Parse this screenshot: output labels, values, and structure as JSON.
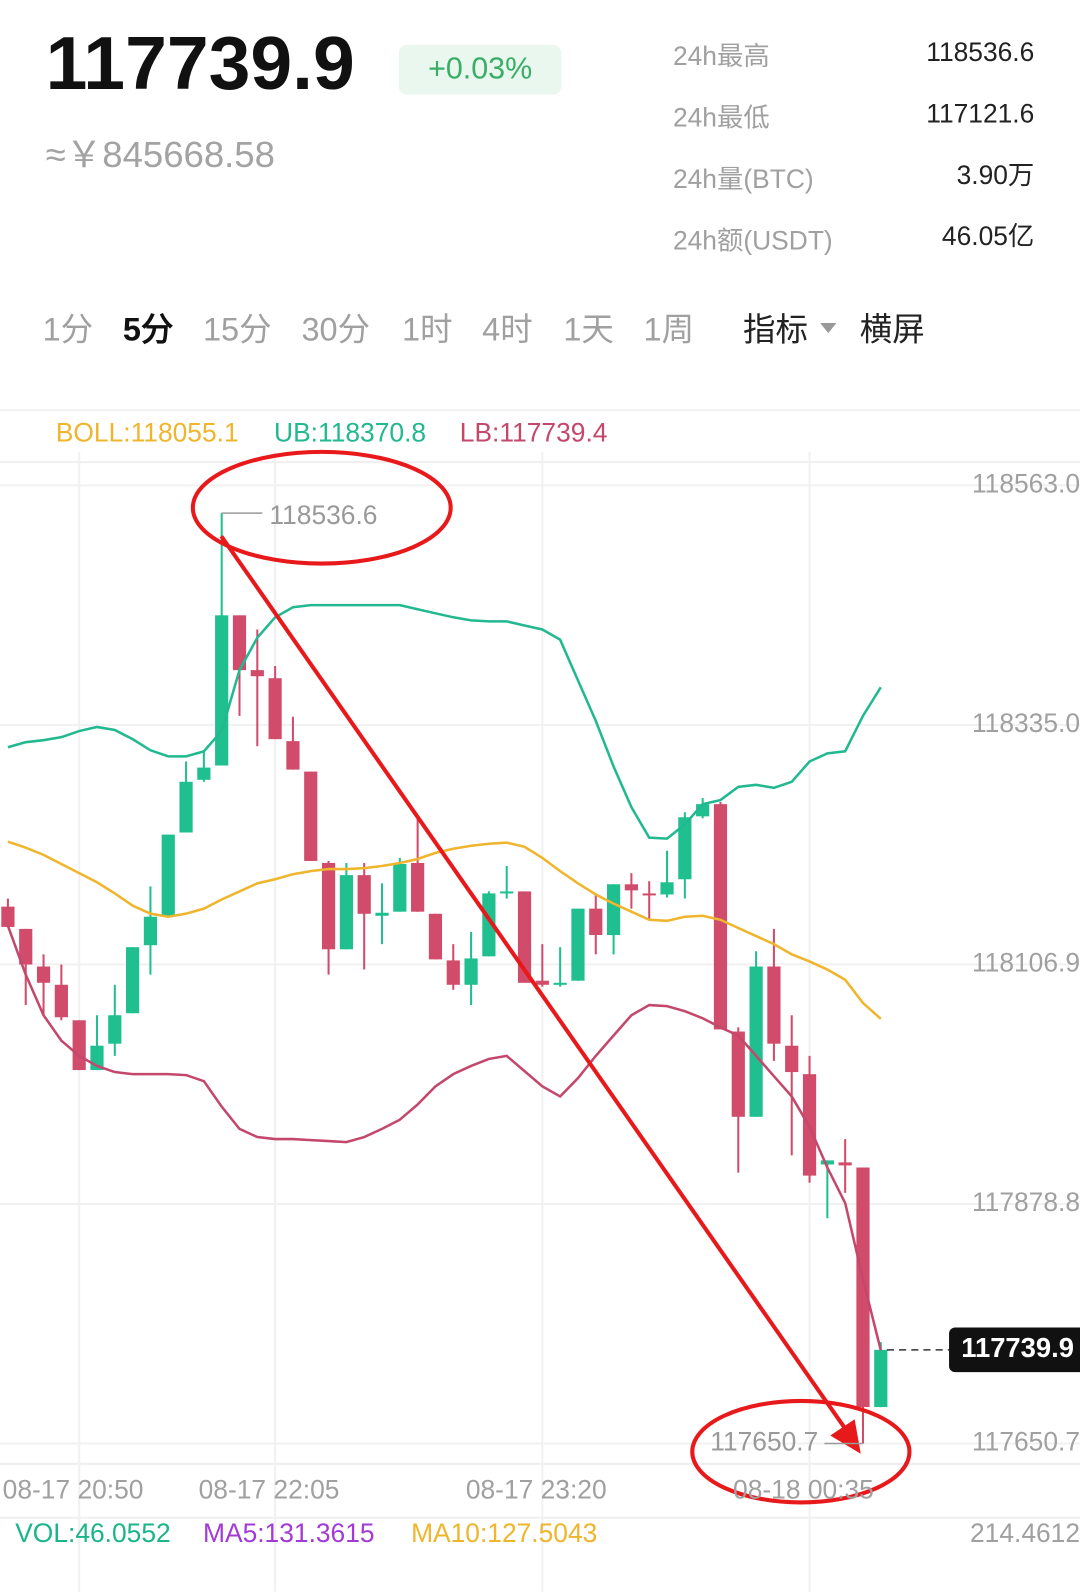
{
  "header": {
    "price": "117739.9",
    "change": "+0.03%",
    "converted": "≈￥845668.58",
    "stats": [
      {
        "label": "24h最高",
        "value": "118536.6"
      },
      {
        "label": "24h最低",
        "value": "117121.6"
      },
      {
        "label": "24h量(BTC)",
        "value": "3.90万"
      },
      {
        "label": "24h额(USDT)",
        "value": "46.05亿"
      }
    ]
  },
  "tabs": {
    "intervals": [
      "1分",
      "5分",
      "15分",
      "30分",
      "1时",
      "4时",
      "1天",
      "1周"
    ],
    "active": 1,
    "indicator": "指标",
    "landscape": "横屏"
  },
  "chart_data": {
    "type": "candlestick",
    "categories": [
      null,
      null,
      null,
      null,
      "08-17 20:50",
      null,
      null,
      null,
      null,
      null,
      null,
      null,
      null,
      null,
      null,
      "08-17 22:05",
      null,
      null,
      null,
      null,
      null,
      null,
      null,
      null,
      null,
      null,
      null,
      null,
      null,
      null,
      "08-17 23:20",
      null,
      null,
      null,
      null,
      null,
      null,
      null,
      null,
      null,
      null,
      null,
      null,
      null,
      null,
      "08-18 00:35",
      null,
      null,
      null,
      null
    ],
    "open": [
      118161.9,
      118140.7,
      118104.9,
      118087.5,
      118053.7,
      118006.3,
      118031.4,
      118060.4,
      118125.2,
      118152.3,
      118232.5,
      118282.7,
      118296.3,
      118439.3,
      118387.1,
      118379.4,
      118319.5,
      118290.5,
      118203.5,
      118121.3,
      118191.9,
      118153.2,
      118157.1,
      118203.5,
      118155.1,
      118110.7,
      118087.5,
      118114.6,
      118174.5,
      118176.4,
      118091.4,
      118087.5,
      118091.4,
      118160.0,
      118134.9,
      118183.2,
      118174.5,
      118173.5,
      118188.0,
      118247.9,
      118259.5,
      118043.0,
      117961.8,
      118104.9,
      118029.5,
      118002.4,
      117916.4,
      117918.4,
      117913.5,
      117685.4
    ],
    "high": [
      118169.6,
      118140.7,
      118116.5,
      118106.8,
      118053.7,
      118058.5,
      118087.5,
      118123.3,
      118181.2,
      118230.5,
      118300.1,
      118309.8,
      118536.6,
      118439.3,
      118425.8,
      118391.0,
      118342.7,
      118290.5,
      118205.4,
      118203.5,
      118203.5,
      118184.1,
      118208.3,
      118247.0,
      118155.1,
      118126.2,
      118137.8,
      118176.4,
      118200.6,
      118176.4,
      118126.2,
      118123.3,
      118160.0,
      118174.5,
      118183.2,
      118193.8,
      118186.1,
      118215.1,
      118251.8,
      118265.3,
      118261.5,
      118046.9,
      118119.4,
      118140.7,
      118058.5,
      118019.8,
      117920.3,
      117940.6,
      117913.5,
      117747.3
    ],
    "low": [
      118142.6,
      118068.2,
      118058.5,
      118053.7,
      118006.3,
      118006.3,
      118019.8,
      118060.4,
      118097.2,
      118152.3,
      118232.5,
      118280.8,
      118296.3,
      118343.6,
      118314.6,
      118321.4,
      118292.4,
      118205.4,
      118097.2,
      118121.3,
      118102.0,
      118126.2,
      118157.1,
      118157.1,
      118111.7,
      118082.7,
      118068.2,
      118114.6,
      118169.6,
      118089.4,
      118085.6,
      118085.6,
      118091.4,
      118116.5,
      118116.5,
      118160.0,
      118150.3,
      118170.6,
      118169.6,
      118246.0,
      118045.0,
      117908.7,
      117961.8,
      118015.0,
      117925.1,
      117899.0,
      117865.2,
      117889.4,
      117650.7,
      117685.4
    ],
    "close": [
      118142.6,
      118106.8,
      118089.4,
      118056.6,
      118006.3,
      118029.5,
      118058.5,
      118123.3,
      118152.3,
      118230.5,
      118280.8,
      118294.3,
      118439.3,
      118387.1,
      118381.3,
      118321.4,
      118292.4,
      118205.4,
      118121.3,
      118191.9,
      118155.1,
      118156.1,
      118202.5,
      118157.1,
      118111.7,
      118087.5,
      118112.6,
      118174.5,
      118176.4,
      118089.4,
      118087.5,
      118089.4,
      118160.0,
      118134.9,
      118183.2,
      118177.4,
      118172.6,
      118185.1,
      118247.0,
      118259.5,
      118045.0,
      117961.8,
      118104.9,
      118031.4,
      118004.4,
      117905.8,
      117920.3,
      117915.5,
      117685.4,
      117739.9
    ],
    "up_color": "#1fbf8f",
    "down_color": "#d14b6a",
    "ylim": [
      117631.3,
      118594.9
    ],
    "yticks": [
      {
        "value": 118563.0,
        "label": "118563.0"
      },
      {
        "value": 118335.0,
        "label": "118335.0"
      },
      118106.9,
      117878.8,
      117650.7
    ],
    "grid": true,
    "series": [
      {
        "label": "BOLL:118055.1",
        "color": "#efb52c",
        "values": [
          118223.8,
          118218.0,
          118211.2,
          118202.5,
          118193.8,
          118185.1,
          118174.5,
          118162.9,
          118155.2,
          118152.3,
          118155.2,
          118160.0,
          118168.7,
          118176.4,
          118184.1,
          118188.0,
          118192.8,
          118195.7,
          118197.7,
          118197.7,
          118198.6,
          118200.6,
          118203.5,
          118207.3,
          118213.1,
          118217.0,
          118219.9,
          118221.8,
          118222.8,
          118218.9,
          118208.3,
          118195.7,
          118184.1,
          118173.5,
          118164.8,
          118157.1,
          118149.4,
          118148.4,
          118152.3,
          118153.2,
          118149.4,
          118141.6,
          118133.9,
          118126.2,
          118116.5,
          118109.7,
          118102.0,
          118092.3,
          118070.1,
          118055.1
        ]
      },
      {
        "label": "UB:118370.8",
        "color": "#22b890",
        "values": [
          118313.7,
          118318.5,
          118320.4,
          118323.3,
          118329.1,
          118333.0,
          118330.1,
          118321.4,
          118310.8,
          118305.0,
          118305.0,
          118309.8,
          118329.1,
          118387.1,
          118418.0,
          118437.4,
          118447.0,
          118449.0,
          118449.0,
          118449.0,
          118449.0,
          118449.0,
          118449.0,
          118445.1,
          118441.2,
          118437.4,
          118434.5,
          118433.5,
          118433.5,
          118429.6,
          118425.8,
          118416.1,
          118377.4,
          118338.8,
          118295.3,
          118256.6,
          118227.6,
          118226.7,
          118240.2,
          118259.5,
          118263.4,
          118276.0,
          118277.9,
          118275.0,
          118280.8,
          118300.1,
          118307.9,
          118309.8,
          118343.6,
          118370.8
        ]
      },
      {
        "label": "LB:117739.4",
        "color": "#c4476c",
        "values": [
          118143.6,
          118097.2,
          118058.5,
          118034.3,
          118019.8,
          118010.2,
          118004.4,
          118002.4,
          118002.4,
          118002.4,
          118001.5,
          117995.7,
          117971.5,
          117950.3,
          117942.5,
          117940.6,
          117940.6,
          117939.6,
          117938.7,
          117937.7,
          117942.5,
          117950.3,
          117959.0,
          117973.5,
          117990.8,
          118002.4,
          118010.2,
          118016.9,
          118019.8,
          118005.3,
          117990.8,
          117981.2,
          117998.6,
          118019.8,
          118039.2,
          118058.5,
          118068.2,
          118067.2,
          118062.4,
          118055.6,
          118046.9,
          118039.2,
          118019.8,
          118000.5,
          117981.2,
          117952.2,
          117913.5,
          117879.7,
          117807.2,
          117739.4
        ]
      }
    ],
    "volume": {
      "labels": [
        {
          "text": "VOL:46.0552",
          "color": "#1ab58a"
        },
        {
          "text": "MA5:131.3615",
          "color": "#a23bd6"
        },
        {
          "text": "MA10:127.5043",
          "color": "#efb52c"
        }
      ],
      "axis_label": "214.4612"
    }
  }
}
